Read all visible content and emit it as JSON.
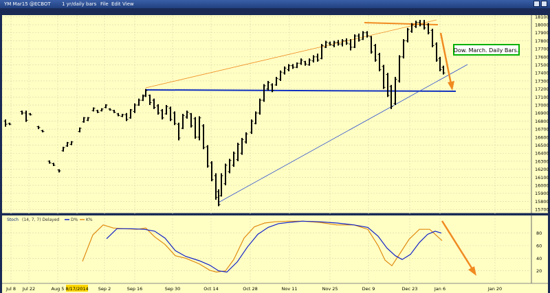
{
  "window": {
    "symbol": "YM Mar15 @ECBOT",
    "interval": "1 yr/daily bars",
    "menu": [
      "File",
      "Edit",
      "View"
    ]
  },
  "chart_data": [
    {
      "type": "candlestick",
      "ylim": [
        15650,
        18120
      ],
      "yticks": [
        15700,
        15800,
        15900,
        16000,
        16100,
        16200,
        16300,
        16400,
        16500,
        16600,
        16700,
        16800,
        16900,
        17000,
        17100,
        17200,
        17300,
        17400,
        17500,
        17600,
        17700,
        17800,
        17900,
        18000,
        18100
      ],
      "x_ticks": [
        "Jul 8",
        "Jul 22",
        "Aug 5",
        "8/17/2014",
        "Sep 2",
        "Sep 16",
        "Sep 30",
        "Oct 14",
        "Oct 28",
        "Nov 11",
        "Nov 25",
        "Dec 9",
        "Dec 23",
        "Jan 6",
        "Jan 20"
      ],
      "annotation": "Dow. March. Daily Bars.",
      "bars": [
        {
          "x": 8,
          "h": 16820,
          "l": 16730,
          "o": 16800,
          "c": 16760
        },
        {
          "x": 14,
          "h": 16780,
          "l": 16750,
          "o": 16770,
          "c": 16760
        },
        {
          "x": 32,
          "h": 16930,
          "l": 16880,
          "o": 16920,
          "c": 16900
        },
        {
          "x": 38,
          "h": 16930,
          "l": 16790,
          "o": 16900,
          "c": 16810
        },
        {
          "x": 44,
          "h": 16900,
          "l": 16870,
          "o": 16890,
          "c": 16880
        },
        {
          "x": 56,
          "h": 16740,
          "l": 16700,
          "o": 16730,
          "c": 16720
        },
        {
          "x": 62,
          "h": 16690,
          "l": 16660,
          "o": 16680,
          "c": 16670
        },
        {
          "x": 72,
          "h": 16310,
          "l": 16270,
          "o": 16300,
          "c": 16280
        },
        {
          "x": 78,
          "h": 16280,
          "l": 16240,
          "o": 16270,
          "c": 16250
        },
        {
          "x": 86,
          "h": 16200,
          "l": 16160,
          "o": 16190,
          "c": 16180
        },
        {
          "x": 92,
          "h": 16480,
          "l": 16420,
          "o": 16430,
          "c": 16470
        },
        {
          "x": 98,
          "h": 16540,
          "l": 16480,
          "o": 16490,
          "c": 16530
        },
        {
          "x": 104,
          "h": 16550,
          "l": 16500,
          "o": 16510,
          "c": 16540
        },
        {
          "x": 116,
          "h": 16720,
          "l": 16660,
          "o": 16670,
          "c": 16710
        },
        {
          "x": 122,
          "h": 16850,
          "l": 16780,
          "o": 16790,
          "c": 16840
        },
        {
          "x": 128,
          "h": 16850,
          "l": 16800,
          "o": 16810,
          "c": 16840
        },
        {
          "x": 136,
          "h": 16970,
          "l": 16920,
          "o": 16930,
          "c": 16960
        },
        {
          "x": 142,
          "h": 16940,
          "l": 16900,
          "o": 16930,
          "c": 16910
        },
        {
          "x": 148,
          "h": 16960,
          "l": 16920,
          "o": 16930,
          "c": 16950
        },
        {
          "x": 154,
          "h": 17010,
          "l": 16960,
          "o": 16970,
          "c": 17000
        },
        {
          "x": 160,
          "h": 16960,
          "l": 16930,
          "o": 16950,
          "c": 16940
        },
        {
          "x": 166,
          "h": 16940,
          "l": 16900,
          "o": 16930,
          "c": 16910
        },
        {
          "x": 172,
          "h": 16900,
          "l": 16860,
          "o": 16890,
          "c": 16870
        },
        {
          "x": 178,
          "h": 16890,
          "l": 16850,
          "o": 16860,
          "c": 16880
        },
        {
          "x": 184,
          "h": 16900,
          "l": 16800,
          "o": 16880,
          "c": 16820
        },
        {
          "x": 190,
          "h": 16950,
          "l": 16830,
          "o": 16840,
          "c": 16940
        },
        {
          "x": 196,
          "h": 17020,
          "l": 16900,
          "o": 16920,
          "c": 17000
        },
        {
          "x": 202,
          "h": 17080,
          "l": 16990,
          "o": 17000,
          "c": 17060
        },
        {
          "x": 208,
          "h": 17130,
          "l": 17050,
          "o": 17060,
          "c": 17110
        },
        {
          "x": 212,
          "h": 17200,
          "l": 17100,
          "o": 17120,
          "c": 17180
        },
        {
          "x": 218,
          "h": 17130,
          "l": 17000,
          "o": 17120,
          "c": 17030
        },
        {
          "x": 224,
          "h": 17080,
          "l": 16950,
          "o": 17060,
          "c": 16970
        },
        {
          "x": 230,
          "h": 17010,
          "l": 16880,
          "o": 16990,
          "c": 16900
        },
        {
          "x": 236,
          "h": 16950,
          "l": 16820,
          "o": 16930,
          "c": 16840
        },
        {
          "x": 242,
          "h": 17000,
          "l": 16880,
          "o": 16890,
          "c": 16980
        },
        {
          "x": 248,
          "h": 16980,
          "l": 16800,
          "o": 16960,
          "c": 16820
        },
        {
          "x": 254,
          "h": 16920,
          "l": 16750,
          "o": 16900,
          "c": 16770
        },
        {
          "x": 260,
          "h": 16780,
          "l": 16560,
          "o": 16760,
          "c": 16590
        },
        {
          "x": 266,
          "h": 16890,
          "l": 16700,
          "o": 16710,
          "c": 16870
        },
        {
          "x": 272,
          "h": 16930,
          "l": 16830,
          "o": 16850,
          "c": 16910
        },
        {
          "x": 278,
          "h": 16900,
          "l": 16720,
          "o": 16890,
          "c": 16740
        },
        {
          "x": 284,
          "h": 16850,
          "l": 16580,
          "o": 16830,
          "c": 16600
        },
        {
          "x": 290,
          "h": 16860,
          "l": 16560,
          "o": 16600,
          "c": 16840
        },
        {
          "x": 296,
          "h": 16760,
          "l": 16450,
          "o": 16740,
          "c": 16470
        },
        {
          "x": 302,
          "h": 16500,
          "l": 16220,
          "o": 16480,
          "c": 16240
        },
        {
          "x": 308,
          "h": 16300,
          "l": 16050,
          "o": 16280,
          "c": 16070
        },
        {
          "x": 314,
          "h": 16150,
          "l": 15820,
          "o": 16120,
          "c": 15850
        },
        {
          "x": 318,
          "h": 15950,
          "l": 15740,
          "o": 15920,
          "c": 15760
        },
        {
          "x": 322,
          "h": 16150,
          "l": 15860,
          "o": 15870,
          "c": 16120
        },
        {
          "x": 328,
          "h": 16270,
          "l": 16000,
          "o": 16020,
          "c": 16250
        },
        {
          "x": 334,
          "h": 16330,
          "l": 16150,
          "o": 16170,
          "c": 16310
        },
        {
          "x": 340,
          "h": 16420,
          "l": 16230,
          "o": 16250,
          "c": 16400
        },
        {
          "x": 346,
          "h": 16530,
          "l": 16300,
          "o": 16320,
          "c": 16510
        },
        {
          "x": 352,
          "h": 16590,
          "l": 16380,
          "o": 16400,
          "c": 16570
        },
        {
          "x": 358,
          "h": 16660,
          "l": 16520,
          "o": 16540,
          "c": 16640
        },
        {
          "x": 366,
          "h": 16820,
          "l": 16640,
          "o": 16660,
          "c": 16800
        },
        {
          "x": 372,
          "h": 16920,
          "l": 16760,
          "o": 16770,
          "c": 16900
        },
        {
          "x": 378,
          "h": 17080,
          "l": 16880,
          "o": 16900,
          "c": 17060
        },
        {
          "x": 384,
          "h": 17260,
          "l": 17040,
          "o": 17060,
          "c": 17240
        },
        {
          "x": 390,
          "h": 17300,
          "l": 17180,
          "o": 17200,
          "c": 17280
        },
        {
          "x": 396,
          "h": 17270,
          "l": 17160,
          "o": 17250,
          "c": 17180
        },
        {
          "x": 402,
          "h": 17350,
          "l": 17240,
          "o": 17250,
          "c": 17330
        },
        {
          "x": 408,
          "h": 17430,
          "l": 17300,
          "o": 17320,
          "c": 17410
        },
        {
          "x": 414,
          "h": 17480,
          "l": 17380,
          "o": 17400,
          "c": 17460
        },
        {
          "x": 420,
          "h": 17510,
          "l": 17420,
          "o": 17440,
          "c": 17490
        },
        {
          "x": 426,
          "h": 17510,
          "l": 17450,
          "o": 17490,
          "c": 17470
        },
        {
          "x": 432,
          "h": 17530,
          "l": 17460,
          "o": 17470,
          "c": 17520
        },
        {
          "x": 438,
          "h": 17580,
          "l": 17500,
          "o": 17520,
          "c": 17560
        },
        {
          "x": 444,
          "h": 17550,
          "l": 17490,
          "o": 17540,
          "c": 17510
        },
        {
          "x": 450,
          "h": 17580,
          "l": 17490,
          "o": 17500,
          "c": 17560
        },
        {
          "x": 456,
          "h": 17620,
          "l": 17530,
          "o": 17550,
          "c": 17600
        },
        {
          "x": 462,
          "h": 17640,
          "l": 17540,
          "o": 17600,
          "c": 17560
        },
        {
          "x": 468,
          "h": 17760,
          "l": 17570,
          "o": 17580,
          "c": 17740
        },
        {
          "x": 474,
          "h": 17800,
          "l": 17710,
          "o": 17720,
          "c": 17780
        },
        {
          "x": 480,
          "h": 17790,
          "l": 17740,
          "o": 17770,
          "c": 17750
        },
        {
          "x": 486,
          "h": 17800,
          "l": 17720,
          "o": 17740,
          "c": 17780
        },
        {
          "x": 492,
          "h": 17810,
          "l": 17740,
          "o": 17780,
          "c": 17760
        },
        {
          "x": 498,
          "h": 17820,
          "l": 17730,
          "o": 17760,
          "c": 17800
        },
        {
          "x": 504,
          "h": 17830,
          "l": 17750,
          "o": 17800,
          "c": 17770
        },
        {
          "x": 510,
          "h": 17820,
          "l": 17680,
          "o": 17760,
          "c": 17720
        },
        {
          "x": 516,
          "h": 17880,
          "l": 17710,
          "o": 17720,
          "c": 17860
        },
        {
          "x": 522,
          "h": 17890,
          "l": 17790,
          "o": 17860,
          "c": 17810
        },
        {
          "x": 528,
          "h": 17920,
          "l": 17810,
          "o": 17820,
          "c": 17900
        },
        {
          "x": 534,
          "h": 17920,
          "l": 17840,
          "o": 17900,
          "c": 17860
        },
        {
          "x": 540,
          "h": 17860,
          "l": 17640,
          "o": 17850,
          "c": 17660
        },
        {
          "x": 546,
          "h": 17760,
          "l": 17540,
          "o": 17740,
          "c": 17560
        },
        {
          "x": 552,
          "h": 17650,
          "l": 17420,
          "o": 17630,
          "c": 17440
        },
        {
          "x": 558,
          "h": 17500,
          "l": 17200,
          "o": 17480,
          "c": 17220
        },
        {
          "x": 564,
          "h": 17400,
          "l": 17100,
          "o": 17380,
          "c": 17120
        },
        {
          "x": 569,
          "h": 17250,
          "l": 16950,
          "o": 17230,
          "c": 16980
        },
        {
          "x": 575,
          "h": 17350,
          "l": 17000,
          "o": 17020,
          "c": 17320
        },
        {
          "x": 581,
          "h": 17620,
          "l": 17280,
          "o": 17300,
          "c": 17600
        },
        {
          "x": 587,
          "h": 17820,
          "l": 17580,
          "o": 17600,
          "c": 17800
        },
        {
          "x": 593,
          "h": 17960,
          "l": 17780,
          "o": 17800,
          "c": 17940
        },
        {
          "x": 599,
          "h": 18020,
          "l": 17900,
          "o": 17920,
          "c": 18000
        },
        {
          "x": 605,
          "h": 18050,
          "l": 17960,
          "o": 17980,
          "c": 18030
        },
        {
          "x": 611,
          "h": 18060,
          "l": 17980,
          "o": 18030,
          "c": 18000
        },
        {
          "x": 617,
          "h": 18060,
          "l": 17940,
          "o": 18000,
          "c": 17960
        },
        {
          "x": 623,
          "h": 18020,
          "l": 17880,
          "o": 18000,
          "c": 17900
        },
        {
          "x": 629,
          "h": 17950,
          "l": 17720,
          "o": 17930,
          "c": 17740
        },
        {
          "x": 635,
          "h": 17780,
          "l": 17540,
          "o": 17760,
          "c": 17560
        },
        {
          "x": 640,
          "h": 17600,
          "l": 17420,
          "o": 17580,
          "c": 17440
        },
        {
          "x": 645,
          "h": 17490,
          "l": 17380,
          "o": 17470,
          "c": 17400
        }
      ]
    },
    {
      "type": "line",
      "name": "Stoch",
      "legend": [
        "(14, 7, 7) Delayed",
        "D%",
        "K%"
      ],
      "ylim": [
        0,
        108
      ],
      "yticks": [
        20,
        40,
        60,
        80
      ],
      "series": [
        {
          "name": "D%",
          "color": "#1020c8",
          "points": [
            [
              155,
              71
            ],
            [
              170,
              87
            ],
            [
              190,
              87
            ],
            [
              210,
              86
            ],
            [
              225,
              83
            ],
            [
              240,
              72
            ],
            [
              255,
              52
            ],
            [
              270,
              43
            ],
            [
              290,
              36
            ],
            [
              305,
              29
            ],
            [
              318,
              20
            ],
            [
              330,
              18
            ],
            [
              345,
              34
            ],
            [
              360,
              58
            ],
            [
              375,
              78
            ],
            [
              390,
              89
            ],
            [
              405,
              95
            ],
            [
              420,
              97
            ],
            [
              440,
              99
            ],
            [
              465,
              98
            ],
            [
              490,
              96
            ],
            [
              515,
              93
            ],
            [
              535,
              89
            ],
            [
              550,
              75
            ],
            [
              563,
              56
            ],
            [
              575,
              44
            ],
            [
              585,
              38
            ],
            [
              597,
              46
            ],
            [
              610,
              65
            ],
            [
              622,
              78
            ],
            [
              633,
              83
            ],
            [
              642,
              80
            ]
          ]
        },
        {
          "name": "K%",
          "color": "#e08a10",
          "points": [
            [
              120,
              35
            ],
            [
              135,
              77
            ],
            [
              150,
              93
            ],
            [
              165,
              88
            ],
            [
              180,
              87
            ],
            [
              200,
              86
            ],
            [
              212,
              88
            ],
            [
              225,
              74
            ],
            [
              240,
              62
            ],
            [
              255,
              44
            ],
            [
              270,
              40
            ],
            [
              290,
              31
            ],
            [
              305,
              21
            ],
            [
              315,
              18
            ],
            [
              328,
              20
            ],
            [
              340,
              38
            ],
            [
              355,
              72
            ],
            [
              370,
              90
            ],
            [
              385,
              96
            ],
            [
              400,
              98
            ],
            [
              420,
              99
            ],
            [
              440,
              99
            ],
            [
              465,
              97
            ],
            [
              490,
              93
            ],
            [
              515,
              93
            ],
            [
              535,
              86
            ],
            [
              550,
              60
            ],
            [
              560,
              37
            ],
            [
              570,
              28
            ],
            [
              582,
              48
            ],
            [
              595,
              70
            ],
            [
              610,
              86
            ],
            [
              625,
              86
            ],
            [
              636,
              75
            ],
            [
              643,
              68
            ]
          ]
        }
      ]
    }
  ]
}
